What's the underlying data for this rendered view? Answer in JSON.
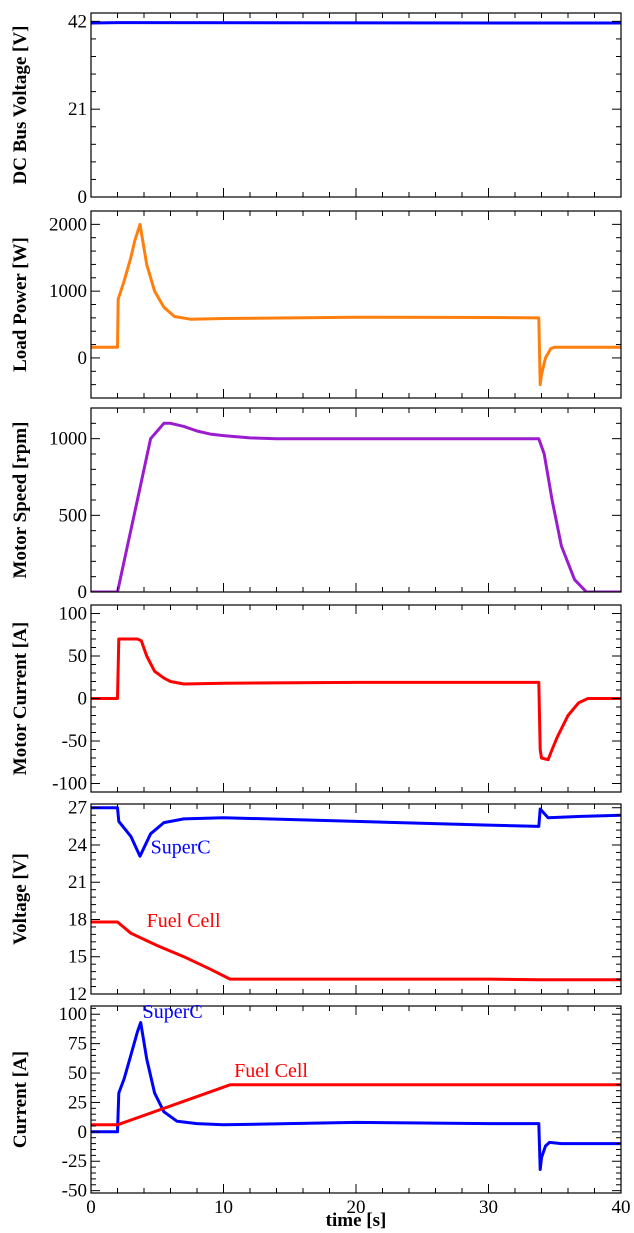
{
  "chart_data": [
    {
      "type": "line",
      "ylabel": "DC Bus Voltage [V]",
      "xlim": [
        0,
        40
      ],
      "ylim": [
        0,
        44
      ],
      "yticks": [
        0,
        21,
        42
      ],
      "show_x_ticklabels": false,
      "series": [
        {
          "color": "#0000ff",
          "x": [
            0,
            2,
            34,
            40
          ],
          "y": [
            41.6,
            41.7,
            41.6,
            41.6
          ]
        }
      ],
      "annotations": []
    },
    {
      "type": "line",
      "ylabel": "Load Power [W]",
      "xlim": [
        0,
        40
      ],
      "ylim": [
        -600,
        2200
      ],
      "yticks": [
        0,
        1000,
        2000
      ],
      "show_x_ticklabels": false,
      "series": [
        {
          "color": "#ff7f0e",
          "x": [
            0,
            2.0,
            2.05,
            2.5,
            3.0,
            3.3,
            3.7,
            4.2,
            4.8,
            5.5,
            6.3,
            7.5,
            10,
            20,
            30,
            33.8,
            33.9,
            34.0,
            34.3,
            34.7,
            35.0,
            40
          ],
          "y": [
            160,
            160,
            880,
            1150,
            1500,
            1750,
            2000,
            1400,
            1000,
            760,
            620,
            580,
            590,
            610,
            605,
            600,
            -400,
            -250,
            0,
            140,
            160,
            160
          ]
        }
      ],
      "annotations": []
    },
    {
      "type": "line",
      "ylabel": "Motor Speed [rpm]",
      "xlim": [
        0,
        40
      ],
      "ylim": [
        0,
        1200
      ],
      "yticks": [
        0,
        500,
        1000
      ],
      "show_x_ticklabels": false,
      "series": [
        {
          "color": "#9b1bcf",
          "x": [
            0,
            2.0,
            2.5,
            3.5,
            4.5,
            5.5,
            6.0,
            7.0,
            8.0,
            9.0,
            10.0,
            12.0,
            14.0,
            20,
            30,
            33.8,
            34.2,
            34.8,
            35.5,
            36.5,
            37.4,
            40
          ],
          "y": [
            0,
            0,
            200,
            600,
            1000,
            1100,
            1100,
            1080,
            1050,
            1030,
            1020,
            1005,
            1000,
            1000,
            1000,
            1000,
            900,
            600,
            300,
            80,
            0,
            0
          ]
        }
      ],
      "annotations": []
    },
    {
      "type": "line",
      "ylabel": "Motor Current [A]",
      "xlim": [
        0,
        40
      ],
      "ylim": [
        -110,
        110
      ],
      "yticks": [
        -100,
        -50,
        0,
        50,
        100
      ],
      "show_x_ticklabels": false,
      "series": [
        {
          "color": "#ff0000",
          "x": [
            0,
            2.0,
            2.1,
            2.5,
            3.0,
            3.5,
            3.8,
            4.2,
            4.8,
            5.5,
            6.0,
            7.0,
            10,
            20,
            30,
            33.8,
            33.9,
            34.0,
            34.5,
            34.8,
            35.2,
            36.0,
            36.8,
            37.5,
            40
          ],
          "y": [
            0,
            0,
            70,
            70,
            70,
            70,
            68,
            50,
            32,
            24,
            20,
            17,
            18,
            19,
            19,
            19,
            -60,
            -70,
            -72,
            -60,
            -45,
            -20,
            -5,
            0,
            0
          ]
        }
      ],
      "annotations": []
    },
    {
      "type": "line",
      "ylabel": "Voltage [V]",
      "xlim": [
        0,
        40
      ],
      "ylim": [
        12,
        27.3
      ],
      "yticks": [
        12,
        15,
        18,
        21,
        24,
        27
      ],
      "show_x_ticklabels": false,
      "series": [
        {
          "name": "SuperC",
          "color": "#0000ff",
          "x": [
            0,
            2.0,
            2.1,
            3.0,
            3.7,
            4.5,
            5.5,
            7.0,
            10,
            20,
            30,
            33.8,
            33.9,
            34.5,
            37,
            40
          ],
          "y": [
            27,
            27,
            25.9,
            24.7,
            23.1,
            24.9,
            25.8,
            26.1,
            26.2,
            25.9,
            25.6,
            25.5,
            26.9,
            26.2,
            26.3,
            26.4
          ]
        },
        {
          "name": "Fuel Cell",
          "color": "#ff0000",
          "x": [
            0,
            2.0,
            3.0,
            5.0,
            7.0,
            9.0,
            10.5,
            20,
            30,
            33.8,
            40
          ],
          "y": [
            17.8,
            17.8,
            16.9,
            15.9,
            15.0,
            14.0,
            13.2,
            13.2,
            13.2,
            13.15,
            13.15
          ]
        }
      ],
      "annotations": [
        {
          "text": "SuperC",
          "x": 4.5,
          "y": 23.3,
          "color": "#0000ff"
        },
        {
          "text": "Fuel Cell",
          "x": 4.2,
          "y": 17.4,
          "color": "#ff0000"
        }
      ]
    },
    {
      "type": "line",
      "ylabel": "Current [A]",
      "xlabel": "time [s]",
      "xlim": [
        0,
        40
      ],
      "ylim": [
        -52,
        107
      ],
      "yticks": [
        -50,
        -25,
        0,
        25,
        50,
        75,
        100
      ],
      "xticks": [
        0,
        10,
        20,
        30,
        40
      ],
      "show_x_ticklabels": true,
      "series": [
        {
          "name": "SuperC",
          "color": "#0000ff",
          "x": [
            0,
            2.0,
            2.1,
            2.5,
            3.0,
            3.5,
            3.75,
            4.2,
            4.8,
            5.5,
            6.5,
            8,
            10,
            20,
            30,
            33.8,
            33.9,
            34.0,
            34.3,
            34.6,
            35.5,
            40
          ],
          "y": [
            0,
            0,
            33,
            45,
            65,
            85,
            93,
            62,
            33,
            17,
            9,
            7,
            6,
            8,
            7,
            7,
            -32,
            -22,
            -12,
            -9,
            -10,
            -10
          ]
        },
        {
          "name": "Fuel Cell",
          "color": "#ff0000",
          "x": [
            0,
            2.0,
            10.5,
            20,
            30,
            40
          ],
          "y": [
            6,
            6,
            40,
            40,
            40,
            40
          ]
        }
      ],
      "annotations": [
        {
          "text": "SuperC",
          "x": 3.9,
          "y": 97,
          "color": "#0000ff"
        },
        {
          "text": "Fuel Cell",
          "x": 10.8,
          "y": 46.5,
          "color": "#ff0000"
        }
      ]
    }
  ]
}
